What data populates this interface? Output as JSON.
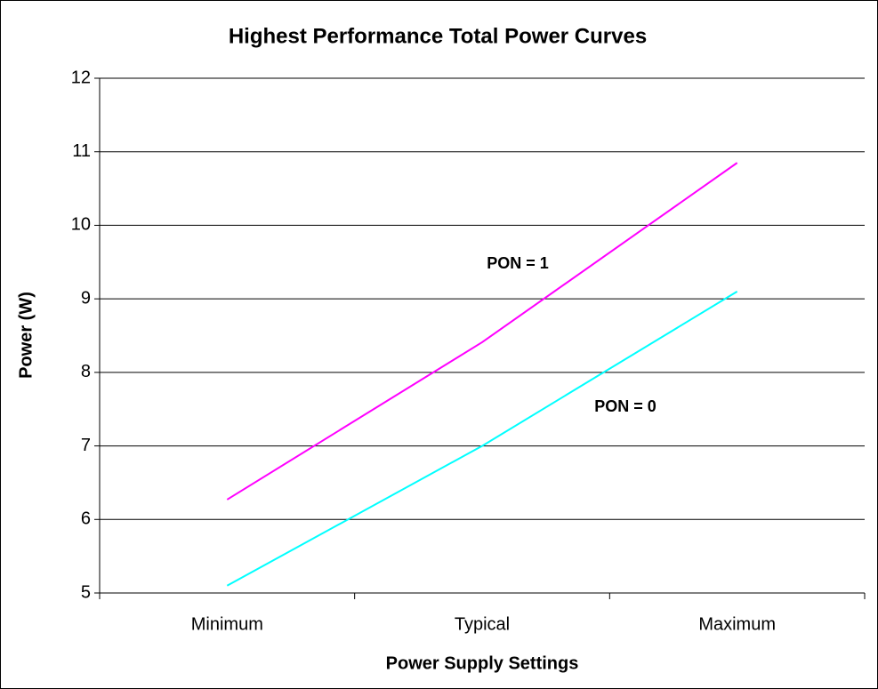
{
  "chart_data": {
    "type": "line",
    "title": "Highest Performance Total Power Curves",
    "xlabel": "Power Supply Settings",
    "ylabel": "Power (W)",
    "categories": [
      "Minimum",
      "Typical",
      "Maximum"
    ],
    "series": [
      {
        "name": "PON = 1",
        "color": "#ff00ff",
        "values": [
          6.27,
          8.41,
          10.85
        ]
      },
      {
        "name": "PON = 0",
        "color": "#00ffff",
        "values": [
          5.1,
          7.0,
          9.1
        ]
      }
    ],
    "ylim": [
      5,
      12
    ],
    "yticks": [
      5,
      6,
      7,
      8,
      9,
      10,
      11,
      12
    ],
    "grid": true
  }
}
